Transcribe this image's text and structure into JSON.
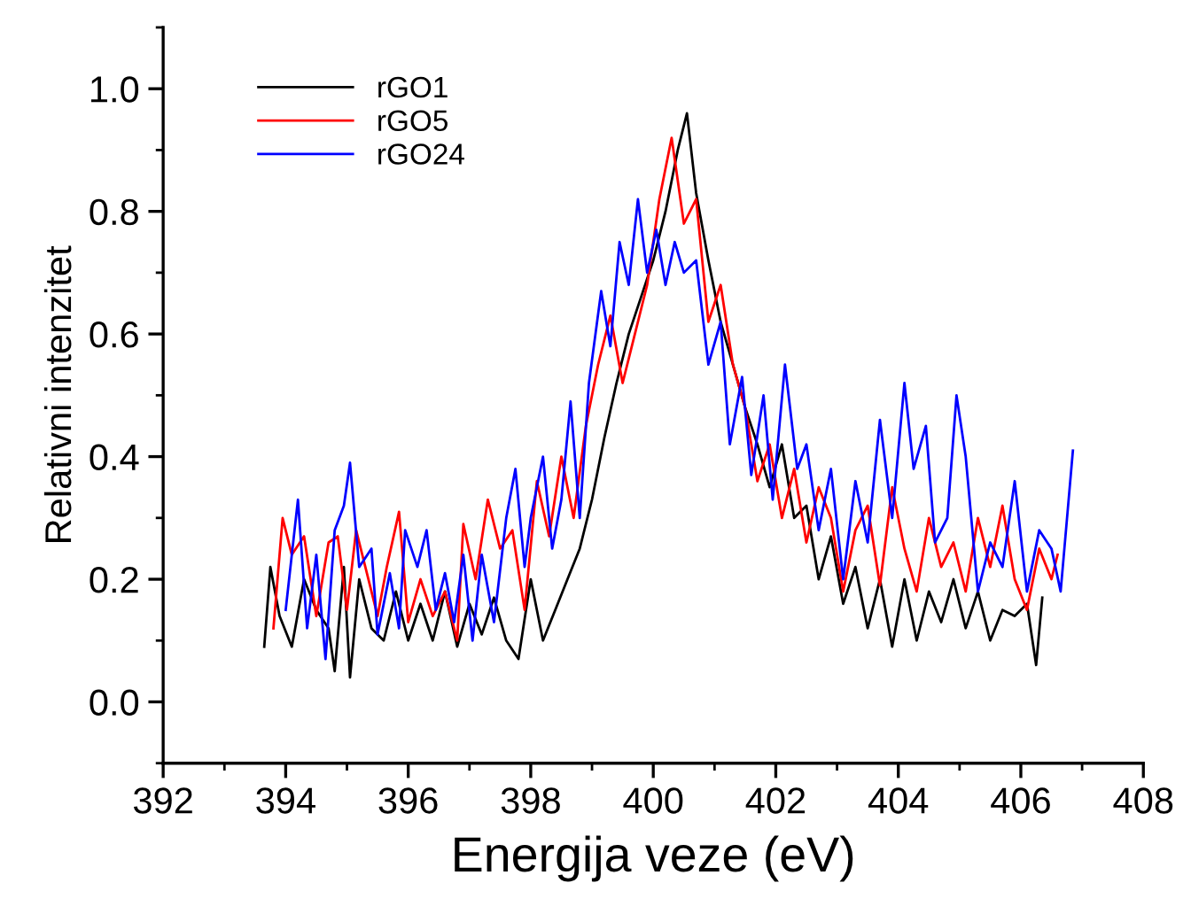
{
  "chart_data": {
    "type": "line",
    "xlabel": "Energija veze (eV)",
    "ylabel": "Relativni intenzitet",
    "xlim": [
      392,
      408
    ],
    "xticks": [
      392,
      394,
      396,
      398,
      400,
      402,
      404,
      406,
      408
    ],
    "ylim": [
      -0.1,
      1.1
    ],
    "yticks": [
      {
        "value": 0.0,
        "label": "0.0"
      },
      {
        "value": 0.2,
        "label": "0.2"
      },
      {
        "value": 0.4,
        "label": "0.4"
      },
      {
        "value": 0.6,
        "label": "0.6"
      },
      {
        "value": 0.8,
        "label": "0.8"
      },
      {
        "value": 1.0,
        "label": "1.0"
      }
    ],
    "grid": false,
    "legend": "top left",
    "marker": "none",
    "line_style": "solid",
    "series": [
      {
        "name": "rGO1",
        "color": "#000000",
        "x": [
          393.65,
          393.75,
          393.9,
          394.1,
          394.3,
          394.5,
          394.7,
          394.8,
          394.95,
          395.05,
          395.2,
          395.4,
          395.6,
          395.8,
          396.0,
          396.2,
          396.4,
          396.6,
          396.8,
          397.0,
          397.2,
          397.4,
          397.6,
          397.8,
          398.0,
          398.2,
          398.4,
          398.6,
          398.8,
          399.0,
          399.2,
          399.4,
          399.6,
          399.8,
          400.0,
          400.2,
          400.4,
          400.55,
          400.7,
          400.9,
          401.1,
          401.3,
          401.5,
          401.7,
          401.9,
          402.1,
          402.3,
          402.5,
          402.7,
          402.9,
          403.1,
          403.3,
          403.5,
          403.7,
          403.9,
          404.1,
          404.3,
          404.5,
          404.7,
          404.9,
          405.1,
          405.3,
          405.5,
          405.7,
          405.9,
          406.1,
          406.25,
          406.35
        ],
        "values": [
          0.09,
          0.22,
          0.14,
          0.09,
          0.2,
          0.15,
          0.12,
          0.05,
          0.22,
          0.04,
          0.2,
          0.12,
          0.1,
          0.18,
          0.1,
          0.16,
          0.1,
          0.18,
          0.09,
          0.16,
          0.11,
          0.17,
          0.1,
          0.07,
          0.2,
          0.1,
          0.15,
          0.2,
          0.25,
          0.33,
          0.43,
          0.52,
          0.6,
          0.66,
          0.72,
          0.8,
          0.9,
          0.96,
          0.83,
          0.72,
          0.62,
          0.55,
          0.48,
          0.42,
          0.35,
          0.42,
          0.3,
          0.32,
          0.2,
          0.27,
          0.16,
          0.22,
          0.12,
          0.2,
          0.09,
          0.2,
          0.1,
          0.18,
          0.13,
          0.2,
          0.12,
          0.18,
          0.1,
          0.15,
          0.14,
          0.16,
          0.06,
          0.17
        ]
      },
      {
        "name": "rGO5",
        "color": "#ff0000",
        "x": [
          393.8,
          393.95,
          394.1,
          394.3,
          394.5,
          394.7,
          394.85,
          395.0,
          395.15,
          395.3,
          395.5,
          395.65,
          395.85,
          396.0,
          396.2,
          396.4,
          396.6,
          396.8,
          396.9,
          397.1,
          397.3,
          397.5,
          397.7,
          397.9,
          398.1,
          398.3,
          398.5,
          398.7,
          398.9,
          399.1,
          399.3,
          399.5,
          399.7,
          399.9,
          400.1,
          400.3,
          400.5,
          400.7,
          400.9,
          401.1,
          401.3,
          401.5,
          401.7,
          401.9,
          402.1,
          402.3,
          402.5,
          402.7,
          402.9,
          403.1,
          403.3,
          403.5,
          403.7,
          403.9,
          404.1,
          404.3,
          404.5,
          404.7,
          404.9,
          405.1,
          405.3,
          405.5,
          405.7,
          405.9,
          406.1,
          406.3,
          406.5,
          406.6
        ],
        "values": [
          0.12,
          0.3,
          0.24,
          0.27,
          0.14,
          0.26,
          0.27,
          0.15,
          0.28,
          0.22,
          0.14,
          0.22,
          0.31,
          0.13,
          0.2,
          0.14,
          0.18,
          0.1,
          0.29,
          0.2,
          0.33,
          0.25,
          0.28,
          0.15,
          0.36,
          0.27,
          0.4,
          0.3,
          0.45,
          0.55,
          0.63,
          0.52,
          0.6,
          0.68,
          0.82,
          0.92,
          0.78,
          0.82,
          0.62,
          0.68,
          0.55,
          0.48,
          0.36,
          0.42,
          0.3,
          0.38,
          0.26,
          0.35,
          0.3,
          0.18,
          0.28,
          0.32,
          0.19,
          0.35,
          0.25,
          0.18,
          0.3,
          0.22,
          0.26,
          0.18,
          0.3,
          0.22,
          0.32,
          0.2,
          0.15,
          0.25,
          0.2,
          0.24
        ]
      },
      {
        "name": "rGO24",
        "color": "#0000ff",
        "x": [
          394.0,
          394.2,
          394.35,
          394.5,
          394.65,
          394.8,
          394.95,
          395.05,
          395.2,
          395.4,
          395.5,
          395.7,
          395.85,
          395.95,
          396.15,
          396.3,
          396.45,
          396.6,
          396.75,
          396.9,
          397.05,
          397.2,
          397.4,
          397.6,
          397.75,
          397.9,
          398.0,
          398.2,
          398.35,
          398.5,
          398.65,
          398.8,
          398.95,
          399.15,
          399.3,
          399.45,
          399.6,
          399.75,
          399.9,
          400.05,
          400.2,
          400.35,
          400.5,
          400.7,
          400.9,
          401.1,
          401.25,
          401.45,
          401.6,
          401.8,
          401.95,
          402.15,
          402.35,
          402.5,
          402.7,
          402.9,
          403.1,
          403.3,
          403.5,
          403.7,
          403.9,
          404.1,
          404.25,
          404.45,
          404.6,
          404.8,
          404.95,
          405.1,
          405.3,
          405.5,
          405.7,
          405.9,
          406.1,
          406.3,
          406.5,
          406.65,
          406.85
        ],
        "values": [
          0.15,
          0.33,
          0.12,
          0.24,
          0.07,
          0.28,
          0.32,
          0.39,
          0.22,
          0.25,
          0.11,
          0.21,
          0.12,
          0.28,
          0.22,
          0.28,
          0.15,
          0.21,
          0.13,
          0.24,
          0.1,
          0.24,
          0.13,
          0.3,
          0.38,
          0.22,
          0.3,
          0.4,
          0.25,
          0.33,
          0.49,
          0.3,
          0.52,
          0.67,
          0.58,
          0.75,
          0.68,
          0.82,
          0.7,
          0.77,
          0.68,
          0.75,
          0.7,
          0.72,
          0.55,
          0.62,
          0.42,
          0.53,
          0.37,
          0.5,
          0.33,
          0.55,
          0.38,
          0.42,
          0.28,
          0.38,
          0.2,
          0.36,
          0.26,
          0.46,
          0.3,
          0.52,
          0.38,
          0.45,
          0.26,
          0.3,
          0.5,
          0.4,
          0.18,
          0.26,
          0.22,
          0.36,
          0.18,
          0.28,
          0.25,
          0.18,
          0.41
        ]
      }
    ]
  }
}
